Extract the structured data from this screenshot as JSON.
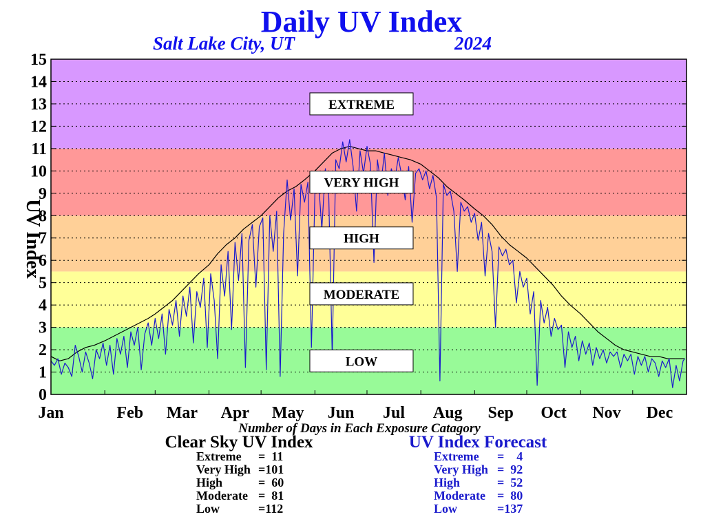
{
  "header": {
    "title": "Daily UV Index",
    "location": "Salt Lake City, UT",
    "year": "2024"
  },
  "colors": {
    "title": "#1010ee",
    "forecast": "#1a1acc",
    "extreme": "#d898ff",
    "very_high": "#ff9898",
    "high": "#ffd098",
    "moderate": "#ffff98",
    "low": "#98fa98"
  },
  "chart_data": {
    "type": "line",
    "title": "Daily UV Index",
    "ylabel": "UV Index",
    "xlabel": "",
    "ylim": [
      0,
      15
    ],
    "xlim": [
      0,
      366
    ],
    "yticks": [
      0,
      1,
      2,
      3,
      4,
      5,
      6,
      7,
      8,
      9,
      10,
      11,
      12,
      13,
      14,
      15
    ],
    "months": [
      {
        "label": "Jan",
        "day": 0
      },
      {
        "label": "Feb",
        "day": 31
      },
      {
        "label": "Mar",
        "day": 60
      },
      {
        "label": "Apr",
        "day": 91
      },
      {
        "label": "May",
        "day": 121
      },
      {
        "label": "Jun",
        "day": 152
      },
      {
        "label": "Jul",
        "day": 182
      },
      {
        "label": "Aug",
        "day": 213
      },
      {
        "label": "Sep",
        "day": 244
      },
      {
        "label": "Oct",
        "day": 274
      },
      {
        "label": "Nov",
        "day": 305
      },
      {
        "label": "Dec",
        "day": 335
      }
    ],
    "bands": [
      {
        "key": "low",
        "label": "LOW",
        "from": 0,
        "to": 3,
        "label_y": 1.5
      },
      {
        "key": "moderate",
        "label": "MODERATE",
        "from": 3,
        "to": 5.5,
        "label_y": 4.5
      },
      {
        "key": "high",
        "label": "HIGH",
        "from": 5.5,
        "to": 8,
        "label_y": 7
      },
      {
        "key": "very_high",
        "label": "VERY HIGH",
        "from": 8,
        "to": 11,
        "label_y": 9.5
      },
      {
        "key": "extreme",
        "label": "EXTREME",
        "from": 11,
        "to": 15,
        "label_y": 13
      }
    ],
    "label_box_day": 182,
    "grid": true,
    "series": [
      {
        "name": "Clear Sky UV Index",
        "color": "#000000",
        "points": [
          [
            0,
            1.7
          ],
          [
            5,
            1.5
          ],
          [
            10,
            1.6
          ],
          [
            15,
            1.9
          ],
          [
            20,
            2.1
          ],
          [
            25,
            2.2
          ],
          [
            31,
            2.4
          ],
          [
            36,
            2.6
          ],
          [
            41,
            2.8
          ],
          [
            46,
            3.0
          ],
          [
            51,
            3.2
          ],
          [
            56,
            3.4
          ],
          [
            60,
            3.6
          ],
          [
            65,
            3.9
          ],
          [
            70,
            4.2
          ],
          [
            75,
            4.6
          ],
          [
            80,
            5.0
          ],
          [
            85,
            5.4
          ],
          [
            91,
            5.8
          ],
          [
            96,
            6.3
          ],
          [
            101,
            6.7
          ],
          [
            106,
            7.0
          ],
          [
            111,
            7.4
          ],
          [
            116,
            7.7
          ],
          [
            121,
            8.0
          ],
          [
            126,
            8.4
          ],
          [
            131,
            8.8
          ],
          [
            136,
            9.1
          ],
          [
            141,
            9.3
          ],
          [
            146,
            9.6
          ],
          [
            152,
            10.0
          ],
          [
            157,
            10.4
          ],
          [
            162,
            10.8
          ],
          [
            167,
            11.0
          ],
          [
            172,
            11.1
          ],
          [
            177,
            11.0
          ],
          [
            182,
            10.9
          ],
          [
            187,
            10.9
          ],
          [
            192,
            10.8
          ],
          [
            197,
            10.7
          ],
          [
            202,
            10.6
          ],
          [
            207,
            10.5
          ],
          [
            213,
            10.3
          ],
          [
            218,
            10.0
          ],
          [
            223,
            9.7
          ],
          [
            228,
            9.3
          ],
          [
            233,
            9.0
          ],
          [
            238,
            8.7
          ],
          [
            244,
            8.3
          ],
          [
            249,
            8.0
          ],
          [
            254,
            7.6
          ],
          [
            259,
            7.1
          ],
          [
            264,
            6.7
          ],
          [
            269,
            6.4
          ],
          [
            274,
            6.1
          ],
          [
            279,
            5.7
          ],
          [
            284,
            5.3
          ],
          [
            289,
            4.9
          ],
          [
            294,
            4.4
          ],
          [
            299,
            4.0
          ],
          [
            305,
            3.6
          ],
          [
            310,
            3.2
          ],
          [
            315,
            2.8
          ],
          [
            320,
            2.5
          ],
          [
            325,
            2.2
          ],
          [
            330,
            2.0
          ],
          [
            335,
            1.9
          ],
          [
            340,
            1.8
          ],
          [
            345,
            1.7
          ],
          [
            350,
            1.7
          ],
          [
            355,
            1.6
          ],
          [
            360,
            1.6
          ],
          [
            365,
            1.6
          ]
        ]
      },
      {
        "name": "UV Index Forecast",
        "color": "#1a1acc",
        "points": [
          [
            0,
            1.5
          ],
          [
            2,
            1.3
          ],
          [
            4,
            1.6
          ],
          [
            6,
            0.9
          ],
          [
            8,
            1.4
          ],
          [
            10,
            1.2
          ],
          [
            12,
            0.8
          ],
          [
            14,
            2.2
          ],
          [
            16,
            1.7
          ],
          [
            18,
            1.0
          ],
          [
            20,
            1.9
          ],
          [
            22,
            1.4
          ],
          [
            24,
            0.7
          ],
          [
            26,
            2.0
          ],
          [
            28,
            1.6
          ],
          [
            30,
            2.3
          ],
          [
            32,
            1.3
          ],
          [
            34,
            2.2
          ],
          [
            36,
            0.9
          ],
          [
            38,
            2.5
          ],
          [
            40,
            1.8
          ],
          [
            42,
            2.6
          ],
          [
            44,
            1.2
          ],
          [
            46,
            2.8
          ],
          [
            48,
            2.2
          ],
          [
            50,
            3.0
          ],
          [
            52,
            1.1
          ],
          [
            54,
            2.7
          ],
          [
            56,
            3.2
          ],
          [
            58,
            2.2
          ],
          [
            60,
            3.4
          ],
          [
            62,
            2.5
          ],
          [
            64,
            3.6
          ],
          [
            66,
            1.8
          ],
          [
            68,
            3.8
          ],
          [
            70,
            3.1
          ],
          [
            72,
            4.2
          ],
          [
            74,
            2.6
          ],
          [
            76,
            4.4
          ],
          [
            78,
            3.5
          ],
          [
            80,
            4.8
          ],
          [
            82,
            2.3
          ],
          [
            84,
            4.6
          ],
          [
            86,
            3.9
          ],
          [
            88,
            5.2
          ],
          [
            90,
            2.1
          ],
          [
            92,
            5.4
          ],
          [
            94,
            4.2
          ],
          [
            96,
            1.6
          ],
          [
            98,
            5.8
          ],
          [
            100,
            4.4
          ],
          [
            102,
            6.4
          ],
          [
            104,
            2.9
          ],
          [
            106,
            6.8
          ],
          [
            108,
            5.1
          ],
          [
            110,
            7.2
          ],
          [
            112,
            1.2
          ],
          [
            114,
            6.9
          ],
          [
            116,
            7.6
          ],
          [
            118,
            4.8
          ],
          [
            120,
            7.5
          ],
          [
            122,
            7.9
          ],
          [
            124,
            1.1
          ],
          [
            126,
            8.0
          ],
          [
            128,
            6.4
          ],
          [
            130,
            8.2
          ],
          [
            132,
            0.8
          ],
          [
            134,
            7.2
          ],
          [
            136,
            9.6
          ],
          [
            138,
            7.8
          ],
          [
            140,
            9.2
          ],
          [
            142,
            5.3
          ],
          [
            144,
            9.4
          ],
          [
            146,
            8.6
          ],
          [
            148,
            9.5
          ],
          [
            150,
            2.1
          ],
          [
            152,
            9.0
          ],
          [
            154,
            9.6
          ],
          [
            156,
            7.4
          ],
          [
            158,
            10.1
          ],
          [
            160,
            8.8
          ],
          [
            162,
            1.7
          ],
          [
            164,
            10.5
          ],
          [
            166,
            10.1
          ],
          [
            168,
            11.3
          ],
          [
            170,
            10.4
          ],
          [
            172,
            11.4
          ],
          [
            174,
            10.2
          ],
          [
            176,
            8.2
          ],
          [
            178,
            10.9
          ],
          [
            180,
            9.9
          ],
          [
            182,
            11.1
          ],
          [
            184,
            10.3
          ],
          [
            186,
            5.9
          ],
          [
            188,
            10.5
          ],
          [
            190,
            9.4
          ],
          [
            192,
            10.8
          ],
          [
            194,
            8.9
          ],
          [
            196,
            10.1
          ],
          [
            198,
            9.6
          ],
          [
            200,
            10.6
          ],
          [
            202,
            9.8
          ],
          [
            204,
            8.7
          ],
          [
            206,
            10.2
          ],
          [
            208,
            7.7
          ],
          [
            210,
            9.9
          ],
          [
            212,
            10.1
          ],
          [
            214,
            9.6
          ],
          [
            216,
            10.0
          ],
          [
            218,
            9.2
          ],
          [
            220,
            9.8
          ],
          [
            222,
            8.8
          ],
          [
            224,
            0.6
          ],
          [
            226,
            9.4
          ],
          [
            228,
            8.9
          ],
          [
            230,
            9.1
          ],
          [
            232,
            8.2
          ],
          [
            234,
            5.5
          ],
          [
            236,
            8.6
          ],
          [
            238,
            8.2
          ],
          [
            240,
            8.4
          ],
          [
            242,
            7.7
          ],
          [
            244,
            8.1
          ],
          [
            246,
            6.9
          ],
          [
            248,
            7.7
          ],
          [
            250,
            5.3
          ],
          [
            252,
            7.2
          ],
          [
            254,
            6.4
          ],
          [
            256,
            3.0
          ],
          [
            258,
            6.6
          ],
          [
            260,
            6.2
          ],
          [
            262,
            6.5
          ],
          [
            264,
            5.8
          ],
          [
            266,
            6.0
          ],
          [
            268,
            4.1
          ],
          [
            270,
            5.5
          ],
          [
            272,
            4.8
          ],
          [
            274,
            5.2
          ],
          [
            276,
            3.6
          ],
          [
            278,
            4.6
          ],
          [
            280,
            0.4
          ],
          [
            282,
            4.2
          ],
          [
            284,
            3.2
          ],
          [
            286,
            3.9
          ],
          [
            288,
            2.6
          ],
          [
            290,
            3.4
          ],
          [
            292,
            2.9
          ],
          [
            294,
            3.1
          ],
          [
            296,
            1.2
          ],
          [
            298,
            2.8
          ],
          [
            300,
            2.1
          ],
          [
            302,
            2.6
          ],
          [
            304,
            1.5
          ],
          [
            306,
            2.4
          ],
          [
            308,
            1.8
          ],
          [
            310,
            2.3
          ],
          [
            312,
            1.3
          ],
          [
            314,
            2.1
          ],
          [
            316,
            1.6
          ],
          [
            318,
            2.0
          ],
          [
            320,
            1.4
          ],
          [
            322,
            1.9
          ],
          [
            324,
            1.7
          ],
          [
            326,
            1.9
          ],
          [
            328,
            1.2
          ],
          [
            330,
            1.8
          ],
          [
            332,
            1.5
          ],
          [
            334,
            1.8
          ],
          [
            336,
            0.9
          ],
          [
            338,
            1.7
          ],
          [
            340,
            1.3
          ],
          [
            342,
            1.7
          ],
          [
            344,
            1.0
          ],
          [
            346,
            1.6
          ],
          [
            348,
            1.4
          ],
          [
            350,
            0.8
          ],
          [
            352,
            1.5
          ],
          [
            354,
            1.2
          ],
          [
            356,
            1.6
          ],
          [
            358,
            0.3
          ],
          [
            360,
            1.3
          ],
          [
            362,
            0.6
          ],
          [
            364,
            1.5
          ],
          [
            365,
            1.6
          ]
        ]
      }
    ]
  },
  "summary": {
    "caption": "Number of Days in Each Exposure Catagory",
    "clear_sky": {
      "title": "Clear Sky UV Index",
      "rows": [
        {
          "label": "Extreme",
          "value": "=  11"
        },
        {
          "label": "Very High",
          "value": "=101"
        },
        {
          "label": "High",
          "value": "=  60"
        },
        {
          "label": "Moderate",
          "value": "=  81"
        },
        {
          "label": "Low",
          "value": "=112"
        }
      ]
    },
    "forecast": {
      "title": "UV Index Forecast",
      "rows": [
        {
          "label": "Extreme",
          "value": "=    4"
        },
        {
          "label": "Very High",
          "value": "=  92"
        },
        {
          "label": "High",
          "value": "=  52"
        },
        {
          "label": "Moderate",
          "value": "=  80"
        },
        {
          "label": "Low",
          "value": "=137"
        }
      ]
    }
  }
}
